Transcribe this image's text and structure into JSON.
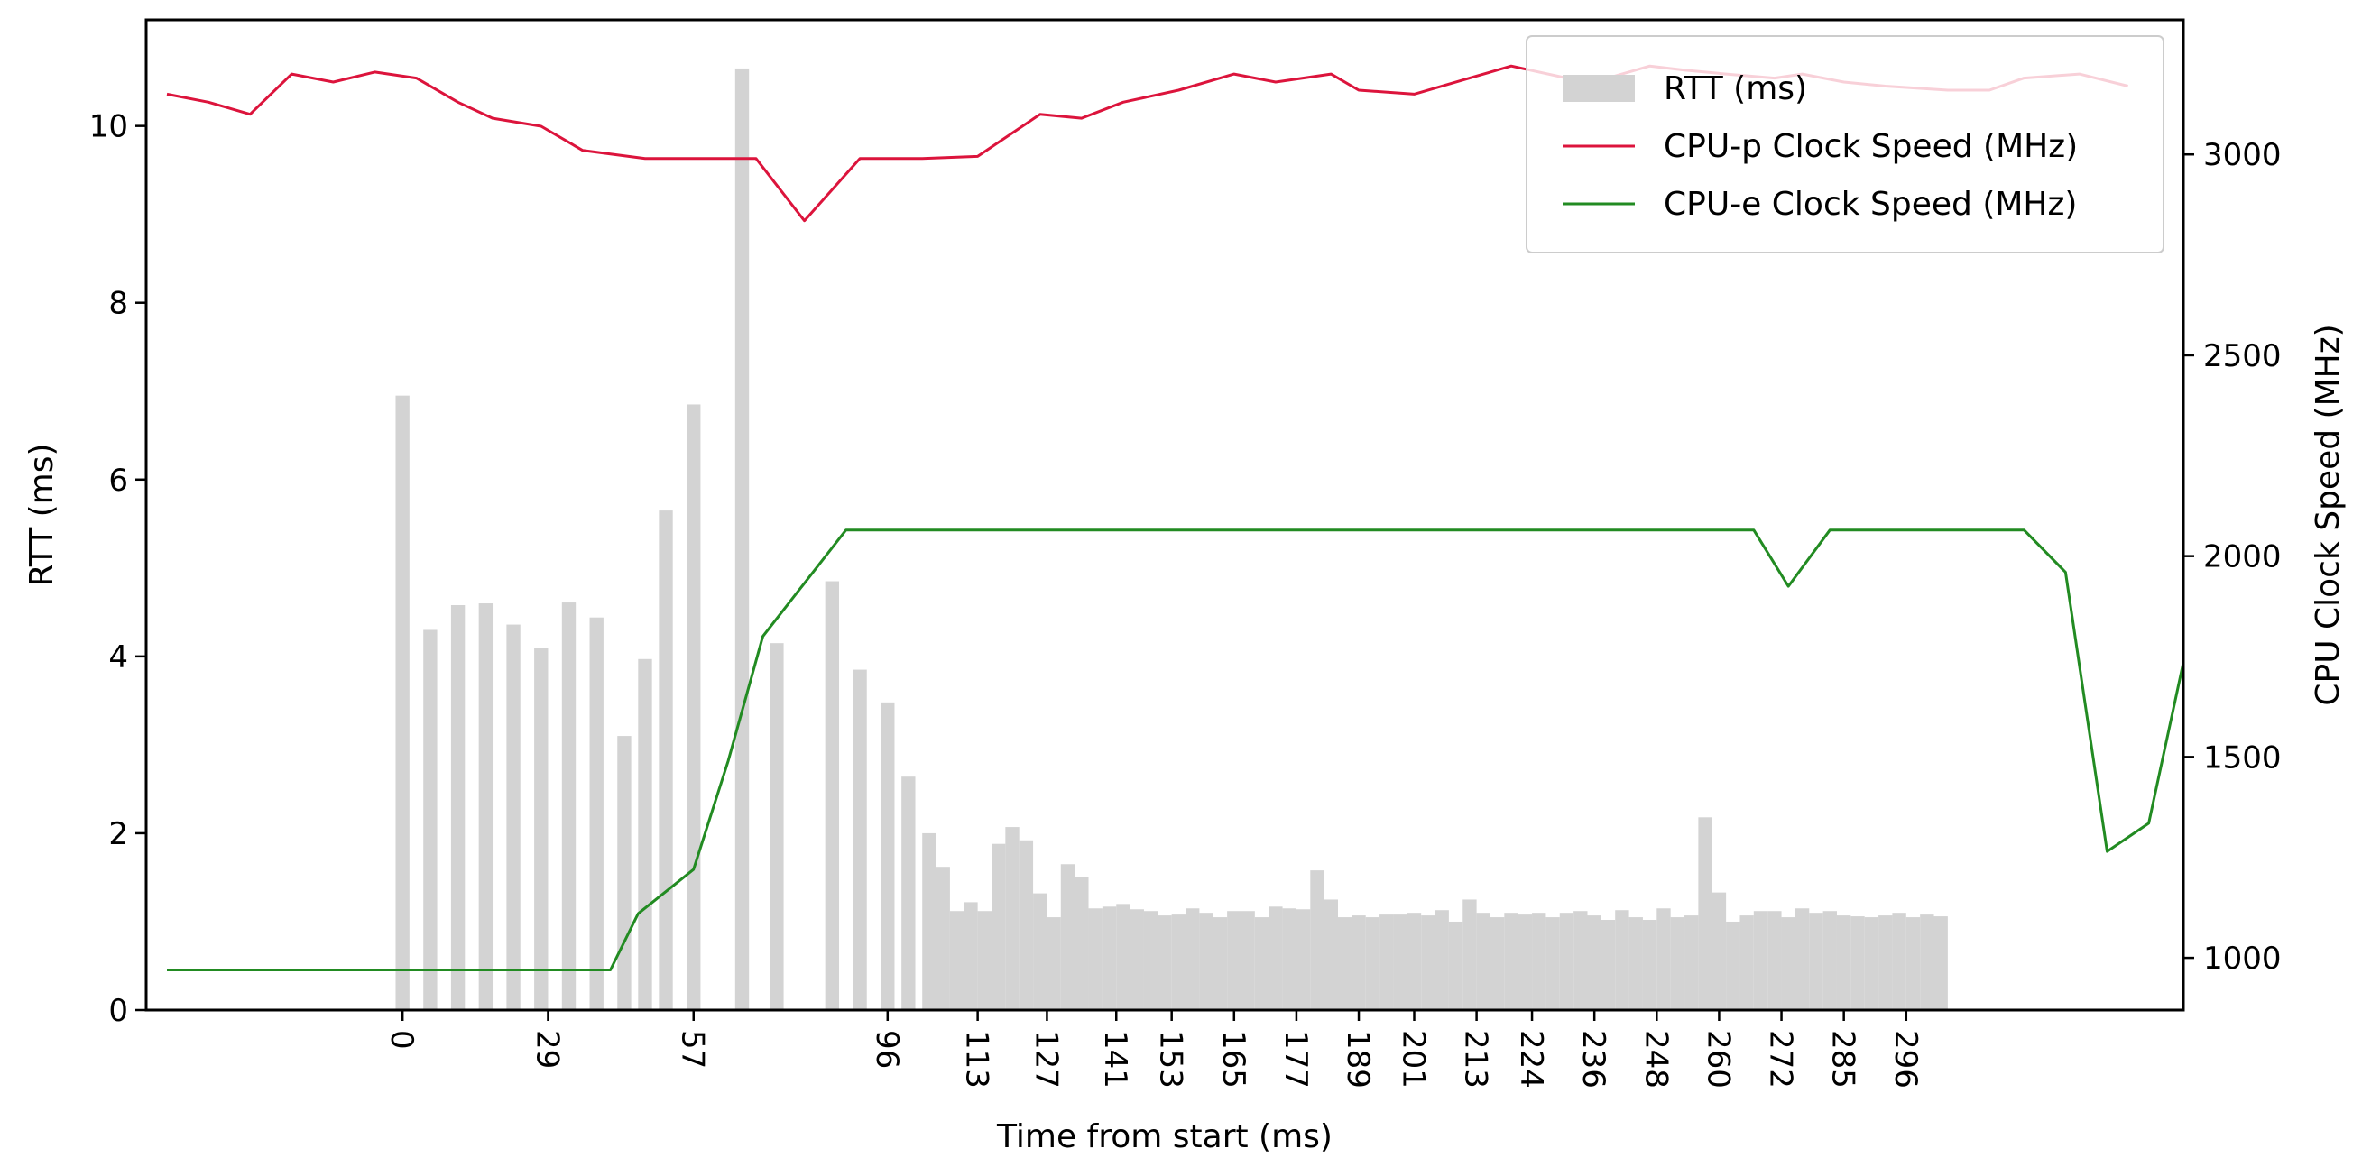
{
  "chart_data": {
    "type": "bar",
    "xlabel": "Time from start (ms)",
    "ylabel": "RTT (ms)",
    "y2label": "CPU Clock Speed (MHz)",
    "ylim": [
      0,
      11.2
    ],
    "y2lim": [
      870,
      3335
    ],
    "xlim": [
      -18.5,
      128.5
    ],
    "yticks": [
      0,
      2,
      4,
      6,
      8,
      10
    ],
    "y2ticks": [
      1000,
      1500,
      2000,
      2500,
      3000
    ],
    "xticks": [
      {
        "x": 0,
        "label": "0"
      },
      {
        "x": 10.5,
        "label": "29"
      },
      {
        "x": 21,
        "label": "57"
      },
      {
        "x": 35,
        "label": "96"
      },
      {
        "x": 41.5,
        "label": "113"
      },
      {
        "x": 46.5,
        "label": "127"
      },
      {
        "x": 51.5,
        "label": "141"
      },
      {
        "x": 55.5,
        "label": "153"
      },
      {
        "x": 60,
        "label": "165"
      },
      {
        "x": 64.5,
        "label": "177"
      },
      {
        "x": 69,
        "label": "189"
      },
      {
        "x": 73,
        "label": "201"
      },
      {
        "x": 77.5,
        "label": "213"
      },
      {
        "x": 81.5,
        "label": "224"
      },
      {
        "x": 86,
        "label": "236"
      },
      {
        "x": 90.5,
        "label": "248"
      },
      {
        "x": 95,
        "label": "260"
      },
      {
        "x": 99.5,
        "label": "272"
      },
      {
        "x": 104,
        "label": "285"
      },
      {
        "x": 108.5,
        "label": "296"
      }
    ],
    "legend_position": "top-right",
    "legend": [
      {
        "label": "RTT (ms)",
        "kind": "bar",
        "color": "#d3d3d3"
      },
      {
        "label": "CPU-p Clock Speed (MHz)",
        "kind": "line",
        "color": "#dc143c"
      },
      {
        "label": "CPU-e Clock Speed (MHz)",
        "kind": "line",
        "color": "#228b22"
      }
    ],
    "series": [
      {
        "kind": "bar",
        "color": "#d3d3d3",
        "x": [
          0,
          2,
          4,
          6,
          8,
          10,
          12,
          14,
          16,
          17.5,
          19,
          21,
          24.5,
          27,
          31,
          33,
          35,
          36.5,
          38,
          39,
          40,
          41,
          42,
          43,
          44,
          45,
          46,
          47,
          48,
          49,
          50,
          51,
          52,
          53,
          54,
          55,
          56,
          57,
          58,
          59,
          60,
          61,
          62,
          63,
          64,
          65,
          66,
          67,
          68,
          69,
          70,
          71,
          72,
          73,
          74,
          75,
          76,
          77,
          78,
          79,
          80,
          81,
          82,
          83,
          84,
          85,
          86,
          87,
          88,
          89,
          90,
          91,
          92,
          93,
          94,
          95,
          96,
          97,
          98,
          99,
          100,
          101,
          102,
          103,
          104,
          105,
          106,
          107,
          108,
          109,
          110,
          111
        ],
        "values": [
          6.95,
          4.3,
          4.58,
          4.6,
          4.36,
          4.1,
          4.61,
          4.44,
          3.1,
          3.97,
          5.65,
          6.85,
          10.65,
          4.15,
          4.85,
          3.85,
          3.48,
          2.64,
          2.0,
          1.62,
          1.12,
          1.22,
          1.12,
          1.88,
          2.07,
          1.92,
          1.32,
          1.05,
          1.65,
          1.5,
          1.15,
          1.17,
          1.2,
          1.14,
          1.12,
          1.07,
          1.08,
          1.15,
          1.1,
          1.05,
          1.12,
          1.12,
          1.05,
          1.17,
          1.15,
          1.14,
          1.58,
          1.25,
          1.05,
          1.07,
          1.05,
          1.08,
          1.08,
          1.1,
          1.07,
          1.13,
          1.0,
          1.25,
          1.1,
          1.05,
          1.1,
          1.08,
          1.1,
          1.05,
          1.1,
          1.12,
          1.07,
          1.02,
          1.13,
          1.05,
          1.02,
          1.15,
          1.05,
          1.07,
          2.18,
          1.33,
          1.0,
          1.07,
          1.12,
          1.12,
          1.05,
          1.15,
          1.1,
          1.12,
          1.07,
          1.06,
          1.05,
          1.07,
          1.1,
          1.05,
          1.08,
          1.06
        ]
      },
      {
        "name": "CPU-p Clock Speed (MHz)",
        "kind": "line",
        "color": "#dc143c",
        "x": [
          -17,
          -14,
          -11,
          -8,
          -5,
          -2,
          1,
          4,
          6.5,
          10,
          13,
          17.5,
          22,
          25.5,
          29,
          33,
          37.5,
          41.5,
          46,
          49,
          52,
          56,
          60,
          63,
          67,
          69,
          73,
          77,
          80,
          84,
          86,
          90,
          92.5,
          95.5,
          99,
          101,
          104,
          107,
          111.5,
          114.5,
          117,
          121,
          124.5
        ],
        "values": [
          3150,
          3130,
          3100,
          3200,
          3180,
          3205,
          3190,
          3130,
          3090,
          3070,
          3010,
          2990,
          2990,
          2990,
          2835,
          2990,
          2990,
          2995,
          3100,
          3090,
          3130,
          3160,
          3200,
          3180,
          3200,
          3160,
          3150,
          3190,
          3220,
          3190,
          3180,
          3220,
          3210,
          3200,
          3190,
          3200,
          3180,
          3170,
          3160,
          3160,
          3190,
          3200,
          3170
        ]
      },
      {
        "name": "CPU-e Clock Speed (MHz)",
        "kind": "line",
        "color": "#228b22",
        "x": [
          -17,
          15,
          17,
          21,
          23.5,
          26,
          32,
          45,
          60,
          80,
          95,
          97.5,
          100,
          103,
          107.5,
          117,
          120,
          123,
          126,
          128.5
        ],
        "values": [
          970,
          970,
          1110,
          1220,
          1490,
          1800,
          2065,
          2065,
          2065,
          2065,
          2065,
          2065,
          1925,
          2065,
          2065,
          2065,
          1960,
          1265,
          1335,
          1735
        ]
      }
    ]
  }
}
